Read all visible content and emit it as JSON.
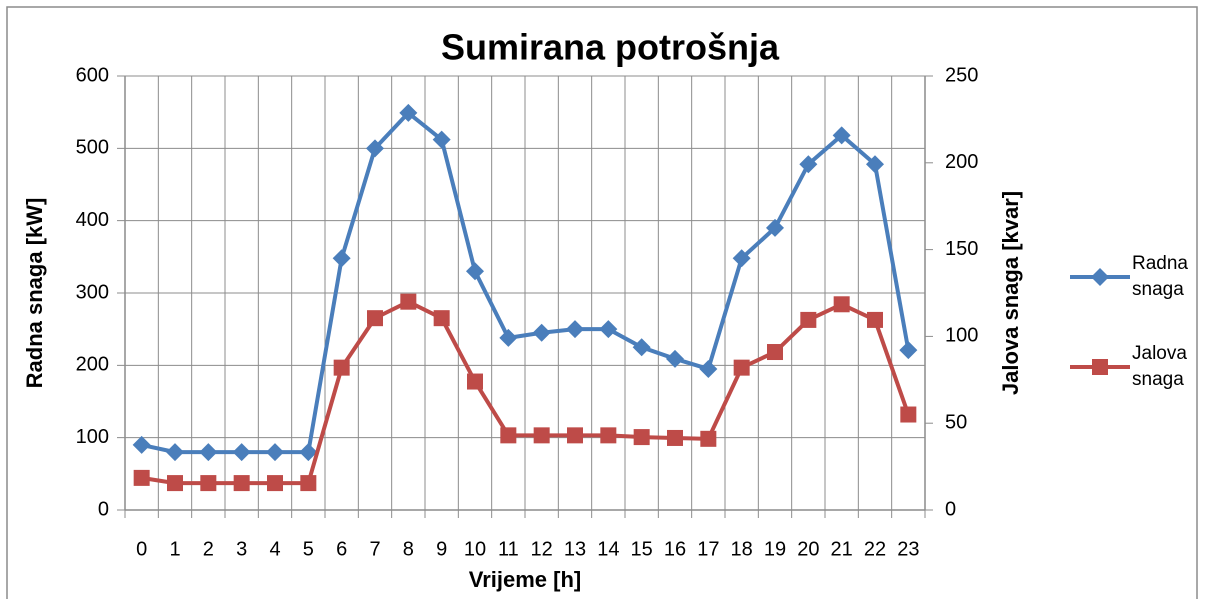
{
  "chart_data": {
    "type": "line",
    "title": "Sumirana potrošnja",
    "x_label": "Vrijeme [h]",
    "y_label": "Radna snaga [kW]",
    "y2_label": "Jalova snaga [kvar]",
    "categories": [
      "0",
      "1",
      "2",
      "3",
      "4",
      "5",
      "6",
      "7",
      "8",
      "9",
      "10",
      "11",
      "12",
      "13",
      "14",
      "15",
      "16",
      "17",
      "18",
      "19",
      "20",
      "21",
      "22",
      "23"
    ],
    "series": [
      {
        "name": "Radna snaga",
        "color": "#4a7ebb",
        "marker": "diamond",
        "values": [
          90,
          80,
          80,
          80,
          80,
          80,
          348,
          500,
          549,
          512,
          330,
          238,
          245,
          250,
          250,
          225,
          209,
          195,
          348,
          390,
          478,
          518,
          478,
          221
        ]
      },
      {
        "name": "Jalova snaga",
        "color": "#be4b48",
        "marker": "square",
        "axis": "y2",
        "values": [
          18.5,
          15.5,
          15.5,
          15.5,
          15.5,
          15.5,
          82,
          110.5,
          120,
          110.5,
          74,
          43,
          43,
          43,
          43,
          42,
          41.5,
          41,
          82,
          91,
          109.5,
          118.5,
          109.5,
          55
        ]
      }
    ],
    "ylim": [
      0,
      600
    ],
    "yticks": [
      0,
      100,
      200,
      300,
      400,
      500,
      600
    ],
    "y2lim": [
      0,
      250
    ],
    "y2ticks": [
      0,
      50,
      100,
      150,
      200,
      250
    ],
    "grid": true,
    "legend": "right"
  }
}
